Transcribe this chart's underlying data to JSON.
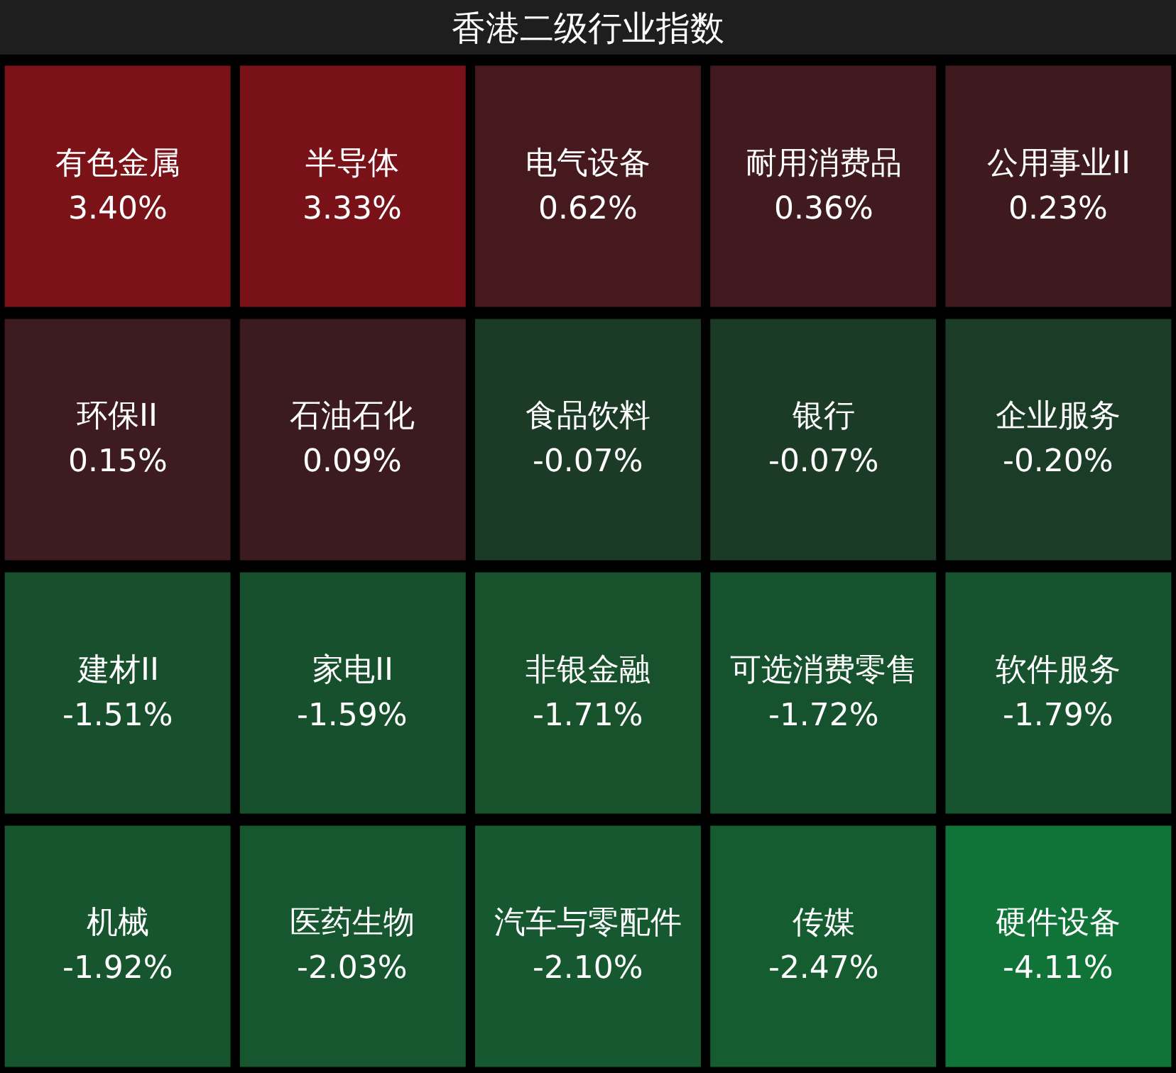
{
  "chart_data": {
    "type": "other",
    "title": "香港二级行业指数",
    "categories": [
      "有色金属",
      "半导体",
      "电气设备",
      "耐用消费品",
      "公用事业II",
      "环保II",
      "石油石化",
      "食品饮料",
      "银行",
      "企业服务",
      "建材II",
      "家电II",
      "非银金融",
      "可选消费零售",
      "软件服务",
      "机械",
      "医药生物",
      "汽车与零配件",
      "传媒",
      "硬件设备"
    ],
    "values": [
      3.4,
      3.33,
      0.62,
      0.36,
      0.23,
      0.15,
      0.09,
      -0.07,
      -0.07,
      -0.2,
      -1.51,
      -1.59,
      -1.71,
      -1.72,
      -1.79,
      -1.92,
      -2.03,
      -2.1,
      -2.47,
      -4.11
    ],
    "value_labels": [
      "3.40%",
      "3.33%",
      "0.62%",
      "0.36%",
      "0.23%",
      "0.15%",
      "0.09%",
      "-0.07%",
      "-0.07%",
      "-0.20%",
      "-1.51%",
      "-1.59%",
      "-1.71%",
      "-1.72%",
      "-1.79%",
      "-1.92%",
      "-2.03%",
      "-2.10%",
      "-2.47%",
      "-4.11%"
    ]
  }
}
